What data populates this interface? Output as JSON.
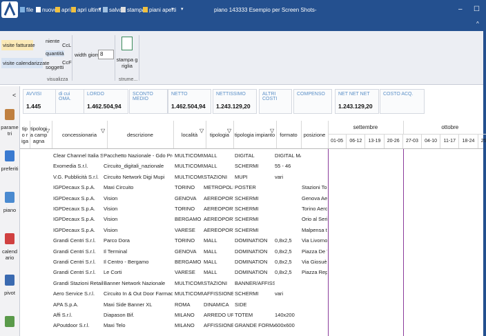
{
  "titlebar": {
    "menu": [
      "file",
      "nuovo",
      "apri",
      "apri ultimi",
      "salva",
      "stampa",
      "piani aperti"
    ],
    "title": "piano 143333 Esempio per Screen Shots-"
  },
  "ribbon": {
    "view_buttons": [
      "visite fatturate",
      "visite calendarizzate"
    ],
    "display_options": [
      "niente",
      "quantità",
      "soggetti"
    ],
    "toggles": [
      "CcL",
      "CcF"
    ],
    "group_label": "visualizza",
    "width_label": "width giorno",
    "width_value": "8",
    "tool": "stampa griglia",
    "tools_label": "strume..."
  },
  "sidebar": {
    "collapse": "<",
    "items": [
      "parametri",
      "preferiti",
      "piano",
      "calendario",
      "pivot"
    ]
  },
  "summary": [
    {
      "label": "AVVISI",
      "value": "1.445"
    },
    {
      "label": "di cui OMA."
    },
    {
      "label": "LORDO",
      "value": "1.462.504,94"
    },
    {
      "label": "SCONTO MEDIO"
    },
    {
      "label": "NETTO",
      "value": "1.462.504,94"
    },
    {
      "label": "NETTISSIMO",
      "value": "1.243.129,20"
    },
    {
      "label": "ALTRI COSTI"
    },
    {
      "label": "COMPENSO"
    },
    {
      "label": "NET NET NET",
      "value": "1.243.129,20"
    },
    {
      "label": "COSTO ACQ."
    }
  ],
  "grid": {
    "columns": [
      "tipo riga",
      "tipologia campagna",
      "concessionaria",
      "descrizione",
      "località",
      "tipologia",
      "tipologia impianto",
      "formato",
      "posizione"
    ],
    "months": [
      "settembre",
      "ottobre"
    ],
    "weeks": [
      "01-05",
      "06-12",
      "13-19",
      "20-26",
      "27-03",
      "04-10",
      "11-17",
      "18-24",
      "25-31"
    ],
    "rows": [
      {
        "concessionaria": "Clear Channel Italia S.p.A.",
        "descrizione": "Pacchetto Nazionale - Gdo Premium",
        "localita": "MULTICOMUNE",
        "tipologia": "MALL",
        "impianto": "DIGITAL",
        "formato": "DIGITAL MALL"
      },
      {
        "concessionaria": "Exomedia S.r.l.",
        "descrizione": "Circuito_digitali_nazionale",
        "localita": "MULTICOMUNE",
        "tipologia": "MALL",
        "impianto": "SCHERMI",
        "formato": "55 - 46"
      },
      {
        "concessionaria": "V.G. Pubblicità S.r.l.",
        "descrizione": "Circuito Network Digi Mupi",
        "localita": "MULTICOMUNE",
        "tipologia": "STAZIONI",
        "impianto": "MUPI",
        "formato": "vari"
      },
      {
        "concessionaria": "IGPDecaux S.p.A.",
        "descrizione": "Maxi Circuito",
        "localita": "TORINO",
        "tipologia": "METROPOLITANA",
        "impianto": "POSTER",
        "posizione": "Stazioni Torino"
      },
      {
        "concessionaria": "IGPDecaux S.p.A.",
        "descrizione": "Vision",
        "localita": "GENOVA",
        "tipologia": "AEREOPORTI",
        "impianto": "SCHERMI",
        "posizione": "Genova Aeropo"
      },
      {
        "concessionaria": "IGPDecaux S.p.A.",
        "descrizione": "Vision",
        "localita": "TORINO",
        "tipologia": "AEREOPORTI",
        "impianto": "SCHERMI",
        "posizione": "Torino Aeropor"
      },
      {
        "concessionaria": "IGPDecaux S.p.A.",
        "descrizione": "Vision",
        "localita": "BERGAMO",
        "tipologia": "AEREOPORTI",
        "impianto": "SCHERMI",
        "posizione": "Orio al Serio A"
      },
      {
        "concessionaria": "IGPDecaux S.p.A.",
        "descrizione": "Vision",
        "localita": "VARESE",
        "tipologia": "AEREOPORTI",
        "impianto": "SCHERMI",
        "posizione": "Malpensa t1"
      },
      {
        "concessionaria": "Grandi Centri S.r.l.",
        "descrizione": "Parco Dora",
        "localita": "TORINO",
        "tipologia": "MALL",
        "impianto": "DOMINATION",
        "formato": "0,8x2,5",
        "posizione": "Via Livorno Ang"
      },
      {
        "concessionaria": "Grandi Centri S.r.l.",
        "descrizione": "Il Terminal",
        "localita": "GENOVA",
        "tipologia": "MALL",
        "impianto": "DOMINATION",
        "formato": "0,8x2,5",
        "posizione": "Piazza De Trag"
      },
      {
        "concessionaria": "Grandi Centri S.r.l.",
        "descrizione": "Il Centro - Bergamo",
        "localita": "BERGAMO",
        "tipologia": "MALL",
        "impianto": "DOMINATION",
        "formato": "0,8x2,5",
        "posizione": "Via Giosuè Car"
      },
      {
        "concessionaria": "Grandi Centri S.r.l.",
        "descrizione": "Le Corti",
        "localita": "VARESE",
        "tipologia": "MALL",
        "impianto": "DOMINATION",
        "formato": "0,8x2,5",
        "posizione": "Piazza Republ"
      },
      {
        "concessionaria": "Grandi Stazioni Retail S.p.A.",
        "descrizione": "Banner Network Nazionale",
        "localita": "MULTICOMUNE",
        "tipologia": "STAZIONI",
        "impianto": "BANNER/AFFISSIONE"
      },
      {
        "concessionaria": "Aero Service S.r.l.",
        "descrizione": "Circuito In & Out Door Farmacie Lloyds",
        "localita": "MULTICOMUNE",
        "tipologia": "AFFISSIONE",
        "impianto": "SCHERMI",
        "formato": "vari"
      },
      {
        "concessionaria": "APA S.p.A.",
        "descrizione": "Maxi Side Banner XL",
        "localita": "ROMA",
        "tipologia": "DINAMICA",
        "impianto": "SIDE"
      },
      {
        "concessionaria": "Affi S.r.l.",
        "descrizione": "Diapason Bif.",
        "localita": "MILANO",
        "tipologia": "ARREDO URBANO",
        "impianto": "TOTEM",
        "formato": "140x200"
      },
      {
        "concessionaria": "APoutdoor S.r.l.",
        "descrizione": "Maxi Telo",
        "localita": "MILANO",
        "tipologia": "AFFISSIONE",
        "impianto": "GRANDE FORMATO",
        "formato": "600x600"
      }
    ]
  }
}
